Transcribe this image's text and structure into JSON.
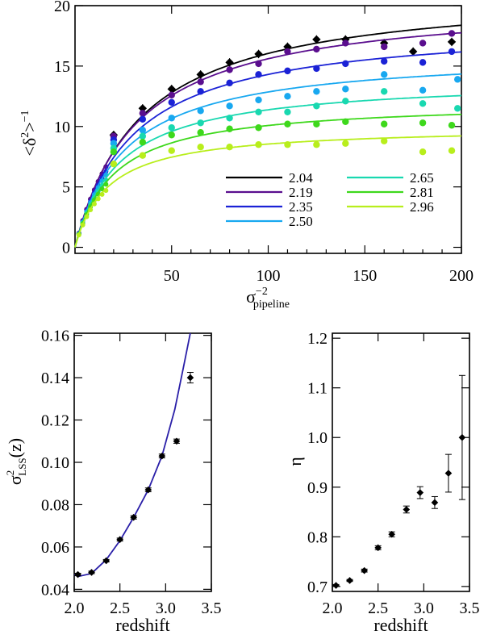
{
  "chart_data": [
    {
      "type": "scatter",
      "title": "",
      "xlabel": "σ_pipeline^-2",
      "xlabel_main": "σ",
      "xlabel_sup": "−2",
      "xlabel_sub": "pipeline",
      "ylabel": "<δ²>^−1",
      "ylabel_main": "<δ",
      "ylabel_sup1": "2",
      "ylabel_end": ">",
      "ylabel_sup2": "−1",
      "xlim": [
        0,
        200
      ],
      "ylim": [
        -0.5,
        20
      ],
      "xticks": [
        50,
        100,
        150,
        200
      ],
      "yticks": [
        0,
        5,
        10,
        15,
        20
      ],
      "legend_position": "lower-right",
      "series": [
        {
          "name": "2.04",
          "color": "#000000",
          "plateau": 21.5,
          "half": 34,
          "points": [
            [
              20,
              9.3
            ],
            [
              35,
              11.5
            ],
            [
              50,
              13.1
            ],
            [
              65,
              14.3
            ],
            [
              80,
              15.3
            ],
            [
              95,
              16.0
            ],
            [
              110,
              16.6
            ],
            [
              125,
              17.2
            ],
            [
              140,
              17.2
            ],
            [
              160,
              16.9
            ],
            [
              175,
              16.2
            ],
            [
              195,
              17.0
            ]
          ]
        },
        {
          "name": "2.19",
          "color": "#5a0e8e",
          "plateau": 20.6,
          "half": 32,
          "points": [
            [
              20,
              9.2
            ],
            [
              35,
              11.1
            ],
            [
              50,
              12.6
            ],
            [
              65,
              13.7
            ],
            [
              80,
              14.7
            ],
            [
              95,
              15.2
            ],
            [
              110,
              16.2
            ],
            [
              125,
              16.4
            ],
            [
              140,
              16.9
            ],
            [
              160,
              16.6
            ],
            [
              180,
              16.9
            ],
            [
              195,
              17.7
            ]
          ]
        },
        {
          "name": "2.35",
          "color": "#1b22d6",
          "plateau": 18.6,
          "half": 30,
          "points": [
            [
              20,
              8.9
            ],
            [
              35,
              10.6
            ],
            [
              50,
              12.0
            ],
            [
              65,
              12.9
            ],
            [
              80,
              13.6
            ],
            [
              95,
              14.3
            ],
            [
              110,
              14.6
            ],
            [
              125,
              14.8
            ],
            [
              140,
              15.2
            ],
            [
              160,
              15.4
            ],
            [
              180,
              15.3
            ],
            [
              195,
              16.2
            ]
          ]
        },
        {
          "name": "2.50",
          "color": "#18a8f0",
          "plateau": 16.2,
          "half": 26,
          "points": [
            [
              20,
              8.6
            ],
            [
              35,
              9.7
            ],
            [
              50,
              10.7
            ],
            [
              65,
              11.3
            ],
            [
              80,
              11.7
            ],
            [
              95,
              12.2
            ],
            [
              110,
              12.5
            ],
            [
              125,
              12.9
            ],
            [
              140,
              13.1
            ],
            [
              160,
              14.3
            ],
            [
              180,
              13.0
            ],
            [
              198,
              13.9
            ]
          ]
        },
        {
          "name": "2.65",
          "color": "#19d8b0",
          "plateau": 14.0,
          "half": 23,
          "points": [
            [
              20,
              8.2
            ],
            [
              35,
              9.2
            ],
            [
              50,
              9.9
            ],
            [
              65,
              10.3
            ],
            [
              80,
              10.7
            ],
            [
              95,
              11.2
            ],
            [
              110,
              11.2
            ],
            [
              125,
              11.7
            ],
            [
              140,
              12.1
            ],
            [
              160,
              12.9
            ],
            [
              180,
              11.9
            ],
            [
              198,
              11.5
            ]
          ]
        },
        {
          "name": "2.81",
          "color": "#3ed81c",
          "plateau": 12.1,
          "half": 20,
          "points": [
            [
              20,
              7.9
            ],
            [
              35,
              8.7
            ],
            [
              50,
              9.3
            ],
            [
              65,
              9.5
            ],
            [
              80,
              9.8
            ],
            [
              95,
              9.9
            ],
            [
              110,
              10.2
            ],
            [
              125,
              10.2
            ],
            [
              140,
              10.4
            ],
            [
              160,
              10.2
            ],
            [
              180,
              10.3
            ],
            [
              195,
              10.1
            ]
          ]
        },
        {
          "name": "2.96",
          "color": "#b8ee1c",
          "plateau": 10.0,
          "half": 17,
          "points": [
            [
              20,
              6.9
            ],
            [
              35,
              7.6
            ],
            [
              50,
              8.0
            ],
            [
              65,
              8.3
            ],
            [
              80,
              8.3
            ],
            [
              95,
              8.5
            ],
            [
              110,
              8.5
            ],
            [
              125,
              8.5
            ],
            [
              140,
              8.6
            ],
            [
              160,
              8.8
            ],
            [
              180,
              7.9
            ],
            [
              195,
              8.0
            ]
          ]
        }
      ]
    },
    {
      "type": "scatter",
      "title": "",
      "xlabel": "redshift",
      "ylabel": "σ²_LSS(z)",
      "ylabel_main": "σ",
      "ylabel_sup": "2",
      "ylabel_sub": "LSS",
      "ylabel_end": "(z)",
      "xlim": [
        2.0,
        3.5
      ],
      "ylim": [
        0.039,
        0.161
      ],
      "xticks": [
        2.0,
        2.5,
        3.0,
        3.5
      ],
      "yticks": [
        0.04,
        0.06,
        0.08,
        0.1,
        0.12,
        0.14,
        0.16
      ],
      "line_color": "#2a1fa8",
      "points": [
        {
          "x": 2.04,
          "y": 0.047,
          "err": 0.0006
        },
        {
          "x": 2.19,
          "y": 0.048,
          "err": 0.0006
        },
        {
          "x": 2.35,
          "y": 0.0535,
          "err": 0.0006
        },
        {
          "x": 2.5,
          "y": 0.0635,
          "err": 0.0007
        },
        {
          "x": 2.65,
          "y": 0.074,
          "err": 0.0008
        },
        {
          "x": 2.81,
          "y": 0.087,
          "err": 0.0009
        },
        {
          "x": 2.96,
          "y": 0.103,
          "err": 0.0009
        },
        {
          "x": 3.12,
          "y": 0.11,
          "err": 0.001
        },
        {
          "x": 3.27,
          "y": 0.14,
          "err": 0.0025
        }
      ],
      "fit_line": {
        "x": [
          2.0,
          2.04,
          2.19,
          2.35,
          2.5,
          2.65,
          2.81,
          2.96,
          3.1,
          3.2,
          3.27
        ],
        "y": [
          0.047,
          0.046,
          0.0475,
          0.054,
          0.063,
          0.074,
          0.087,
          0.103,
          0.125,
          0.146,
          0.161
        ]
      }
    },
    {
      "type": "scatter",
      "title": "",
      "xlabel": "redshift",
      "ylabel": "η",
      "xlim": [
        2.0,
        3.5
      ],
      "ylim": [
        0.69,
        1.21
      ],
      "xticks": [
        2.0,
        2.5,
        3.0,
        3.5
      ],
      "yticks": [
        0.7,
        0.8,
        0.9,
        1.0,
        1.1,
        1.2
      ],
      "points": [
        {
          "x": 2.04,
          "y": 0.702,
          "err": 0.002
        },
        {
          "x": 2.19,
          "y": 0.712,
          "err": 0.002
        },
        {
          "x": 2.35,
          "y": 0.732,
          "err": 0.003
        },
        {
          "x": 2.5,
          "y": 0.778,
          "err": 0.004
        },
        {
          "x": 2.65,
          "y": 0.805,
          "err": 0.005
        },
        {
          "x": 2.81,
          "y": 0.855,
          "err": 0.007
        },
        {
          "x": 2.96,
          "y": 0.889,
          "err": 0.012
        },
        {
          "x": 3.12,
          "y": 0.869,
          "err": 0.012
        },
        {
          "x": 3.27,
          "y": 0.928,
          "err": 0.038
        },
        {
          "x": 3.42,
          "y": 1.0,
          "err": 0.125
        }
      ]
    }
  ]
}
